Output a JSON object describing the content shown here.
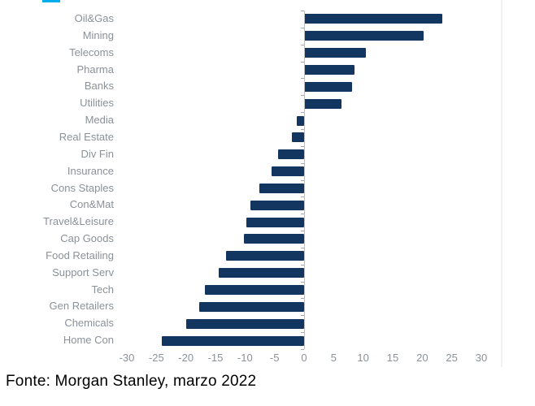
{
  "chart_data": {
    "type": "bar",
    "orientation": "horizontal",
    "title": "",
    "categories": [
      "Oil&Gas",
      "Mining",
      "Telecoms",
      "Pharma",
      "Banks",
      "Utilities",
      "Media",
      "Real Estate",
      "Div Fin",
      "Insurance",
      "Cons Staples",
      "Con&Mat",
      "Travel&Leisure",
      "Cap Goods",
      "Food Retailing",
      "Support Serv",
      "Tech",
      "Gen Retailers",
      "Chemicals",
      "Home Con"
    ],
    "values": [
      23.4,
      20.2,
      10.5,
      8.5,
      8.1,
      6.3,
      -1.3,
      -2.0,
      -4.4,
      -5.5,
      -7.5,
      -9.1,
      -9.8,
      -10.2,
      -13.2,
      -14.4,
      -16.8,
      -17.8,
      -19.9,
      -24.1
    ],
    "x_ticks": [
      -30,
      -25,
      -20,
      -15,
      -10,
      -5,
      0,
      5,
      10,
      15,
      20,
      25,
      30
    ],
    "xlim": [
      -30,
      30
    ],
    "xlabel": "",
    "ylabel": "",
    "grid": false,
    "legend": "none",
    "bar_color": "#12365F",
    "label_color": "#8b9199",
    "axis_color": "#bfbfbf"
  },
  "decor": {
    "cropped_title_color": "#00AEEF"
  },
  "source": {
    "text": "Fonte: Morgan Stanley, marzo 2022"
  }
}
